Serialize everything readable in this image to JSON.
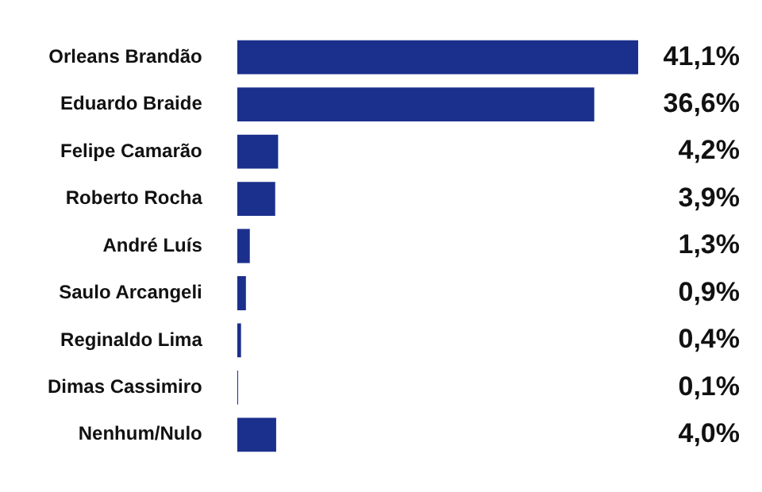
{
  "chart_data": {
    "type": "bar",
    "orientation": "horizontal",
    "categories": [
      "Orleans Brandão",
      "Eduardo Braide",
      "Felipe Camarão",
      "Roberto Rocha",
      "André Luís",
      "Saulo Arcangeli",
      "Reginaldo Lima",
      "Dimas Cassimiro",
      "Nenhum/Nulo"
    ],
    "values": [
      41.1,
      36.6,
      4.2,
      3.9,
      1.3,
      0.9,
      0.4,
      0.1,
      4.0
    ],
    "value_labels": [
      "41,1%",
      "36,6%",
      "4,2%",
      "3,9%",
      "1,3%",
      "0,9%",
      "0,4%",
      "0,1%",
      "4,0%"
    ],
    "color": "#1b2f8c",
    "tick_labels": "y"
  }
}
